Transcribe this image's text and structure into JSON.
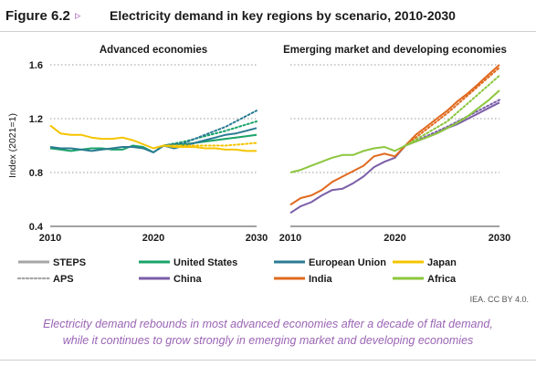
{
  "figure": {
    "number": "Figure 6.2",
    "arrow": "▹",
    "title": "Electricity demand in key regions by scenario, 2010-2030",
    "credit": "IEA. CC BY 4.0.",
    "caption_lines": [
      "Electricity demand rebounds in most advanced economies after a decade of flat demand,",
      "while it continues to grow strongly in emerging market and developing economies"
    ]
  },
  "legend": {
    "items": [
      {
        "label": "STEPS",
        "color": "#a6a6a6",
        "style": "solid"
      },
      {
        "label": "APS",
        "color": "#a6a6a6",
        "style": "dotted"
      },
      {
        "label": "United States",
        "color": "#1aa36a",
        "style": "solid"
      },
      {
        "label": "China",
        "color": "#7b5ea8",
        "style": "solid"
      },
      {
        "label": "European Union",
        "color": "#2b7b93",
        "style": "solid"
      },
      {
        "label": "India",
        "color": "#e06a1f",
        "style": "solid"
      },
      {
        "label": "Japan",
        "color": "#f5c400",
        "style": "solid"
      },
      {
        "label": "Africa",
        "color": "#8cc63e",
        "style": "solid"
      }
    ]
  },
  "chart_data": [
    {
      "type": "line",
      "title": "Advanced economies",
      "ylabel": "Index (2021=1)",
      "xlim": [
        2010,
        2030
      ],
      "ylim": [
        0.4,
        1.6
      ],
      "xticks": [
        "2010",
        "2020",
        "2030"
      ],
      "yticks": [
        "0.4",
        "0.8",
        "1.2",
        "1.6"
      ],
      "grid": "dotted horizontal",
      "series": [
        {
          "name": "United States",
          "color": "#1aa36a",
          "steps": [
            [
              2010,
              0.98
            ],
            [
              2011,
              0.97
            ],
            [
              2012,
              0.96
            ],
            [
              2013,
              0.97
            ],
            [
              2014,
              0.98
            ],
            [
              2015,
              0.98
            ],
            [
              2016,
              0.97
            ],
            [
              2017,
              0.97
            ],
            [
              2018,
              1.0
            ],
            [
              2019,
              0.99
            ],
            [
              2020,
              0.95
            ],
            [
              2021,
              1.0
            ],
            [
              2022,
              1.01
            ],
            [
              2023,
              1.01
            ],
            [
              2024,
              1.02
            ],
            [
              2025,
              1.03
            ],
            [
              2026,
              1.04
            ],
            [
              2027,
              1.05
            ],
            [
              2028,
              1.06
            ],
            [
              2029,
              1.07
            ],
            [
              2030,
              1.08
            ]
          ],
          "aps": [
            [
              2021,
              1.0
            ],
            [
              2023,
              1.03
            ],
            [
              2025,
              1.07
            ],
            [
              2027,
              1.11
            ],
            [
              2030,
              1.18
            ]
          ]
        },
        {
          "name": "European Union",
          "color": "#2b7b93",
          "steps": [
            [
              2010,
              0.99
            ],
            [
              2011,
              0.98
            ],
            [
              2012,
              0.98
            ],
            [
              2013,
              0.97
            ],
            [
              2014,
              0.96
            ],
            [
              2015,
              0.97
            ],
            [
              2016,
              0.98
            ],
            [
              2017,
              0.99
            ],
            [
              2018,
              0.99
            ],
            [
              2019,
              0.98
            ],
            [
              2020,
              0.95
            ],
            [
              2021,
              1.0
            ],
            [
              2022,
              0.98
            ],
            [
              2023,
              1.0
            ],
            [
              2024,
              1.02
            ],
            [
              2025,
              1.04
            ],
            [
              2026,
              1.06
            ],
            [
              2027,
              1.08
            ],
            [
              2028,
              1.09
            ],
            [
              2029,
              1.11
            ],
            [
              2030,
              1.13
            ]
          ],
          "aps": [
            [
              2021,
              1.0
            ],
            [
              2023,
              1.02
            ],
            [
              2025,
              1.08
            ],
            [
              2027,
              1.14
            ],
            [
              2030,
              1.26
            ]
          ]
        },
        {
          "name": "Japan",
          "color": "#f5c400",
          "steps": [
            [
              2010,
              1.15
            ],
            [
              2011,
              1.09
            ],
            [
              2012,
              1.08
            ],
            [
              2013,
              1.08
            ],
            [
              2014,
              1.06
            ],
            [
              2015,
              1.05
            ],
            [
              2016,
              1.05
            ],
            [
              2017,
              1.06
            ],
            [
              2018,
              1.04
            ],
            [
              2019,
              1.01
            ],
            [
              2020,
              0.98
            ],
            [
              2021,
              1.0
            ],
            [
              2022,
              0.99
            ],
            [
              2023,
              0.99
            ],
            [
              2024,
              0.99
            ],
            [
              2025,
              0.98
            ],
            [
              2026,
              0.98
            ],
            [
              2027,
              0.97
            ],
            [
              2028,
              0.97
            ],
            [
              2029,
              0.96
            ],
            [
              2030,
              0.96
            ]
          ],
          "aps": [
            [
              2021,
              1.0
            ],
            [
              2024,
              1.0
            ],
            [
              2027,
              1.0
            ],
            [
              2030,
              1.02
            ]
          ]
        }
      ]
    },
    {
      "type": "line",
      "title": "Emerging market and developing economies",
      "xlim": [
        2010,
        2030
      ],
      "ylim": [
        0.4,
        1.6
      ],
      "xticks": [
        "2010",
        "2020",
        "2030"
      ],
      "grid": "dotted horizontal",
      "series": [
        {
          "name": "China",
          "color": "#7b5ea8",
          "steps": [
            [
              2010,
              0.5
            ],
            [
              2011,
              0.55
            ],
            [
              2012,
              0.58
            ],
            [
              2013,
              0.63
            ],
            [
              2014,
              0.67
            ],
            [
              2015,
              0.68
            ],
            [
              2016,
              0.72
            ],
            [
              2017,
              0.77
            ],
            [
              2018,
              0.84
            ],
            [
              2019,
              0.88
            ],
            [
              2020,
              0.91
            ],
            [
              2021,
              1.0
            ],
            [
              2022,
              1.03
            ],
            [
              2023,
              1.06
            ],
            [
              2024,
              1.09
            ],
            [
              2025,
              1.13
            ],
            [
              2026,
              1.16
            ],
            [
              2027,
              1.2
            ],
            [
              2028,
              1.24
            ],
            [
              2029,
              1.28
            ],
            [
              2030,
              1.32
            ]
          ],
          "aps": [
            [
              2021,
              1.0
            ],
            [
              2025,
              1.14
            ],
            [
              2030,
              1.34
            ]
          ]
        },
        {
          "name": "India",
          "color": "#e06a1f",
          "steps": [
            [
              2010,
              0.56
            ],
            [
              2011,
              0.61
            ],
            [
              2012,
              0.63
            ],
            [
              2013,
              0.67
            ],
            [
              2014,
              0.73
            ],
            [
              2015,
              0.77
            ],
            [
              2016,
              0.81
            ],
            [
              2017,
              0.85
            ],
            [
              2018,
              0.92
            ],
            [
              2019,
              0.94
            ],
            [
              2020,
              0.92
            ],
            [
              2021,
              1.0
            ],
            [
              2022,
              1.08
            ],
            [
              2023,
              1.14
            ],
            [
              2024,
              1.2
            ],
            [
              2025,
              1.26
            ],
            [
              2026,
              1.33
            ],
            [
              2027,
              1.39
            ],
            [
              2028,
              1.46
            ],
            [
              2029,
              1.53
            ],
            [
              2030,
              1.6
            ]
          ],
          "aps": [
            [
              2021,
              1.0
            ],
            [
              2025,
              1.24
            ],
            [
              2030,
              1.58
            ]
          ]
        },
        {
          "name": "Africa",
          "color": "#8cc63e",
          "steps": [
            [
              2010,
              0.8
            ],
            [
              2011,
              0.82
            ],
            [
              2012,
              0.85
            ],
            [
              2013,
              0.88
            ],
            [
              2014,
              0.91
            ],
            [
              2015,
              0.93
            ],
            [
              2016,
              0.93
            ],
            [
              2017,
              0.96
            ],
            [
              2018,
              0.98
            ],
            [
              2019,
              0.99
            ],
            [
              2020,
              0.96
            ],
            [
              2021,
              1.0
            ],
            [
              2022,
              1.03
            ],
            [
              2023,
              1.06
            ],
            [
              2024,
              1.09
            ],
            [
              2025,
              1.13
            ],
            [
              2026,
              1.17
            ],
            [
              2027,
              1.22
            ],
            [
              2028,
              1.28
            ],
            [
              2029,
              1.34
            ],
            [
              2030,
              1.41
            ]
          ],
          "aps": [
            [
              2021,
              1.0
            ],
            [
              2025,
              1.18
            ],
            [
              2030,
              1.52
            ]
          ]
        }
      ]
    }
  ]
}
